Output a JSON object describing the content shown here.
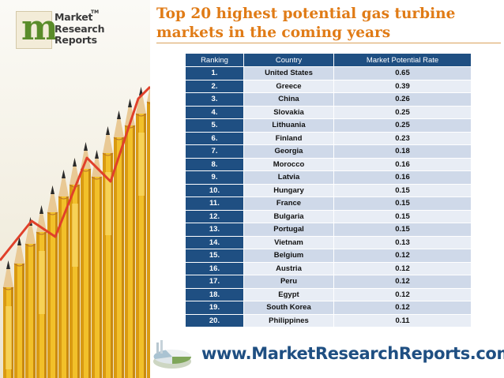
{
  "logo": {
    "letter": "m",
    "line1": "Market",
    "line2": "Research",
    "line3": "Reports",
    "tm": "TM"
  },
  "title": {
    "line1": "Top 20 highest potential gas turbine",
    "line2": "markets in the coming years"
  },
  "table": {
    "headers": [
      "Ranking",
      "Country",
      "Market Potential Rate"
    ],
    "rows": [
      {
        "rank": "1.",
        "country": "United States",
        "rate": "0.65"
      },
      {
        "rank": "2.",
        "country": "Greece",
        "rate": "0.39"
      },
      {
        "rank": "3.",
        "country": "China",
        "rate": "0.26"
      },
      {
        "rank": "4.",
        "country": "Slovakia",
        "rate": "0.25"
      },
      {
        "rank": "5.",
        "country": "Lithuania",
        "rate": "0.25"
      },
      {
        "rank": "6.",
        "country": "Finland",
        "rate": "0.23"
      },
      {
        "rank": "7.",
        "country": "Georgia",
        "rate": "0.18"
      },
      {
        "rank": "8.",
        "country": "Morocco",
        "rate": "0.16"
      },
      {
        "rank": "9.",
        "country": "Latvia",
        "rate": "0.16"
      },
      {
        "rank": "10.",
        "country": "Hungary",
        "rate": "0.15"
      },
      {
        "rank": "11.",
        "country": "France",
        "rate": "0.15"
      },
      {
        "rank": "12.",
        "country": "Bulgaria",
        "rate": "0.15"
      },
      {
        "rank": "13.",
        "country": "Portugal",
        "rate": "0.15"
      },
      {
        "rank": "14.",
        "country": "Vietnam",
        "rate": "0.13"
      },
      {
        "rank": "15.",
        "country": "Belgium",
        "rate": "0.12"
      },
      {
        "rank": "16.",
        "country": "Austria",
        "rate": "0.12"
      },
      {
        "rank": "17.",
        "country": "Peru",
        "rate": "0.12"
      },
      {
        "rank": "18.",
        "country": "Egypt",
        "rate": "0.12"
      },
      {
        "rank": "19.",
        "country": "South Korea",
        "rate": "0.12"
      },
      {
        "rank": "20.",
        "country": "Philippines",
        "rate": "0.11"
      }
    ]
  },
  "footer": {
    "url": "www.MarketResearchReports.com",
    "icon": "pie-chart-icon"
  },
  "colors": {
    "title": "#e07b16",
    "table_header": "#1f4f82",
    "row_dark": "#cfd9e9",
    "row_light": "#e8edf5",
    "url": "#1f4f82",
    "logo_m": "#5a8c2a",
    "pencil": "#f2c02a",
    "trend_line": "#e0402a"
  }
}
